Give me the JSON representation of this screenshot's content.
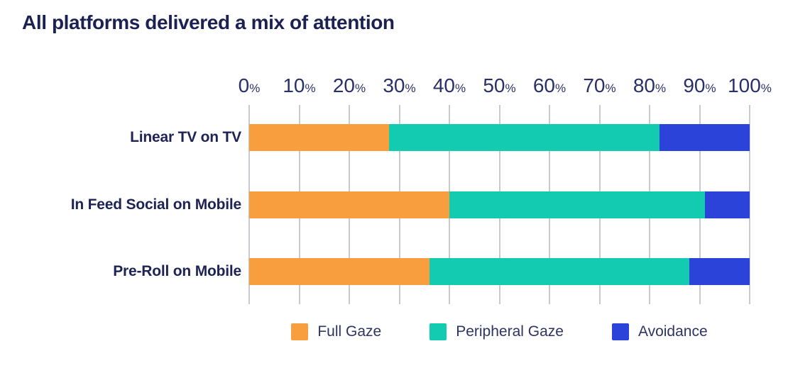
{
  "title": "All platforms delivered a mix of attention",
  "chart_data": {
    "type": "bar",
    "orientation": "horizontal",
    "stacked": true,
    "title": "All platforms delivered a mix of attention",
    "categories": [
      "Linear TV on TV",
      "In Feed Social on Mobile",
      "Pre-Roll on Mobile"
    ],
    "series": [
      {
        "name": "Full Gaze",
        "color": "#F99E3E",
        "values": [
          28,
          40,
          36
        ]
      },
      {
        "name": "Peripheral Gaze",
        "color": "#12CBB0",
        "values": [
          54,
          51,
          52
        ]
      },
      {
        "name": "Avoidance",
        "color": "#2B43D8",
        "values": [
          18,
          9,
          12
        ]
      }
    ],
    "x_ticks": [
      0,
      10,
      20,
      30,
      40,
      50,
      60,
      70,
      80,
      90,
      100
    ],
    "x_tick_suffix": "%",
    "xlim": [
      0,
      100
    ],
    "xlabel": "",
    "ylabel": "",
    "grid": "vertical",
    "legend_position": "bottom",
    "colors": {
      "title_text": "#1b2153",
      "axis_text": "#2a3064",
      "category_text": "#1d2357",
      "legend_text": "#2e3461",
      "gridline": "#c9cacf",
      "background": "#ffffff"
    }
  }
}
